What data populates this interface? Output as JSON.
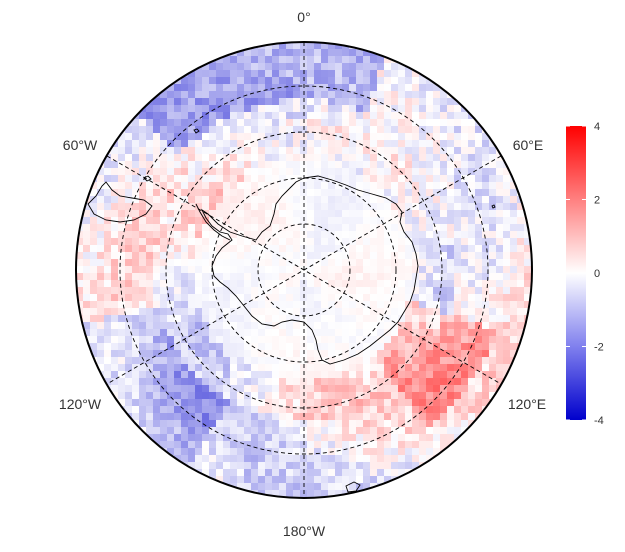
{
  "map": {
    "projection": "south-polar-stereographic",
    "longitude_labels": {
      "top": "0°",
      "upper_left": "60°W",
      "upper_right": "60°E",
      "lower_left": "120°W",
      "lower_right": "120°E",
      "bottom": "180°W"
    },
    "graticule": "dashed",
    "land": "Antarctica coastline outline, South America tip"
  },
  "colorbar": {
    "min": -4,
    "max": 4,
    "ticks": [
      "4",
      "2",
      "0",
      "-2",
      "-4"
    ],
    "colors": {
      "low": "#0000cc",
      "mid": "#ffffff",
      "high": "#ff0000"
    }
  }
}
